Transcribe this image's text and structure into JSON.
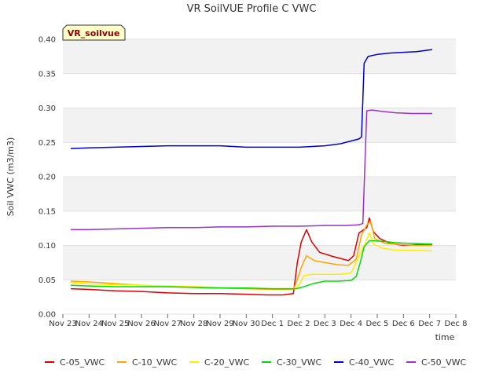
{
  "chart_data": {
    "type": "line",
    "title": "VR SoilVUE Profile C VWC",
    "xlabel": "time",
    "ylabel": "Soil VWC (m3/m3)",
    "badge": "VR_soilvue",
    "xlim": [
      0,
      15
    ],
    "ylim": [
      0,
      0.4
    ],
    "x_ticks": [
      {
        "v": 0,
        "label": "Nov 23"
      },
      {
        "v": 1,
        "label": "Nov 24"
      },
      {
        "v": 2,
        "label": "Nov 25"
      },
      {
        "v": 3,
        "label": "Nov 26"
      },
      {
        "v": 4,
        "label": "Nov 27"
      },
      {
        "v": 5,
        "label": "Nov 28"
      },
      {
        "v": 6,
        "label": "Nov 29"
      },
      {
        "v": 7,
        "label": "Nov 30"
      },
      {
        "v": 8,
        "label": "Dec 1"
      },
      {
        "v": 9,
        "label": "Dec 2"
      },
      {
        "v": 10,
        "label": "Dec 3"
      },
      {
        "v": 11,
        "label": "Dec 4"
      },
      {
        "v": 12,
        "label": "Dec 5"
      },
      {
        "v": 13,
        "label": "Dec 6"
      },
      {
        "v": 14,
        "label": "Dec 7"
      },
      {
        "v": 15,
        "label": "Dec 8"
      }
    ],
    "y_ticks": [
      {
        "v": 0.0,
        "label": "0.00"
      },
      {
        "v": 0.05,
        "label": "0.05"
      },
      {
        "v": 0.1,
        "label": "0.10"
      },
      {
        "v": 0.15,
        "label": "0.15"
      },
      {
        "v": 0.2,
        "label": "0.20"
      },
      {
        "v": 0.25,
        "label": "0.25"
      },
      {
        "v": 0.3,
        "label": "0.30"
      },
      {
        "v": 0.35,
        "label": "0.35"
      },
      {
        "v": 0.4,
        "label": "0.40"
      }
    ],
    "grid": true,
    "legend_position": "bottom",
    "series": [
      {
        "name": "C-05_VWC",
        "color": "#dd0000",
        "points": [
          [
            0.3,
            0.037
          ],
          [
            1,
            0.036
          ],
          [
            2,
            0.034
          ],
          [
            3,
            0.033
          ],
          [
            4,
            0.031
          ],
          [
            5,
            0.03
          ],
          [
            6,
            0.03
          ],
          [
            7,
            0.029
          ],
          [
            7.8,
            0.028
          ],
          [
            8.4,
            0.028
          ],
          [
            8.8,
            0.03
          ],
          [
            8.95,
            0.075
          ],
          [
            9.1,
            0.105
          ],
          [
            9.3,
            0.123
          ],
          [
            9.5,
            0.105
          ],
          [
            9.8,
            0.09
          ],
          [
            10.3,
            0.084
          ],
          [
            10.7,
            0.08
          ],
          [
            10.9,
            0.078
          ],
          [
            11.1,
            0.085
          ],
          [
            11.3,
            0.118
          ],
          [
            11.6,
            0.126
          ],
          [
            11.7,
            0.14
          ],
          [
            11.85,
            0.12
          ],
          [
            12.1,
            0.11
          ],
          [
            12.5,
            0.103
          ],
          [
            13.0,
            0.1
          ],
          [
            13.5,
            0.101
          ],
          [
            14.1,
            0.101
          ]
        ]
      },
      {
        "name": "C-10_VWC",
        "color": "#ffa500",
        "points": [
          [
            0.3,
            0.048
          ],
          [
            1,
            0.047
          ],
          [
            1.8,
            0.045
          ],
          [
            3,
            0.042
          ],
          [
            4,
            0.04
          ],
          [
            5,
            0.039
          ],
          [
            6,
            0.038
          ],
          [
            7,
            0.037
          ],
          [
            8.0,
            0.036
          ],
          [
            8.8,
            0.036
          ],
          [
            8.95,
            0.05
          ],
          [
            9.1,
            0.068
          ],
          [
            9.3,
            0.085
          ],
          [
            9.6,
            0.078
          ],
          [
            10.0,
            0.075
          ],
          [
            10.5,
            0.072
          ],
          [
            10.9,
            0.071
          ],
          [
            11.2,
            0.08
          ],
          [
            11.4,
            0.115
          ],
          [
            11.6,
            0.13
          ],
          [
            11.75,
            0.135
          ],
          [
            11.9,
            0.11
          ],
          [
            12.3,
            0.103
          ],
          [
            13.0,
            0.101
          ],
          [
            13.5,
            0.1
          ],
          [
            14.1,
            0.1
          ]
        ]
      },
      {
        "name": "C-20_VWC",
        "color": "#ffee00",
        "points": [
          [
            0.3,
            0.046
          ],
          [
            1,
            0.044
          ],
          [
            2,
            0.043
          ],
          [
            3,
            0.042
          ],
          [
            4,
            0.041
          ],
          [
            5,
            0.04
          ],
          [
            6,
            0.039
          ],
          [
            7,
            0.038
          ],
          [
            8.0,
            0.037
          ],
          [
            8.9,
            0.037
          ],
          [
            9.05,
            0.045
          ],
          [
            9.2,
            0.056
          ],
          [
            9.5,
            0.058
          ],
          [
            10.0,
            0.058
          ],
          [
            10.6,
            0.058
          ],
          [
            11.0,
            0.06
          ],
          [
            11.25,
            0.08
          ],
          [
            11.5,
            0.1
          ],
          [
            11.7,
            0.118
          ],
          [
            11.85,
            0.102
          ],
          [
            12.2,
            0.096
          ],
          [
            12.7,
            0.093
          ],
          [
            13.5,
            0.093
          ],
          [
            14.1,
            0.092
          ]
        ]
      },
      {
        "name": "C-30_VWC",
        "color": "#00dd00",
        "points": [
          [
            0.3,
            0.042
          ],
          [
            1,
            0.041
          ],
          [
            2,
            0.04
          ],
          [
            3,
            0.04
          ],
          [
            4,
            0.04
          ],
          [
            5,
            0.039
          ],
          [
            6,
            0.038
          ],
          [
            7,
            0.038
          ],
          [
            8.0,
            0.037
          ],
          [
            8.9,
            0.037
          ],
          [
            9.2,
            0.04
          ],
          [
            9.6,
            0.045
          ],
          [
            10.0,
            0.048
          ],
          [
            10.5,
            0.048
          ],
          [
            11.0,
            0.049
          ],
          [
            11.2,
            0.055
          ],
          [
            11.35,
            0.075
          ],
          [
            11.5,
            0.098
          ],
          [
            11.7,
            0.107
          ],
          [
            12.2,
            0.106
          ],
          [
            12.7,
            0.104
          ],
          [
            13.3,
            0.103
          ],
          [
            14.1,
            0.102
          ]
        ]
      },
      {
        "name": "C-40_VWC",
        "color": "#0000cc",
        "points": [
          [
            0.3,
            0.241
          ],
          [
            1,
            0.242
          ],
          [
            2,
            0.243
          ],
          [
            3,
            0.244
          ],
          [
            4,
            0.245
          ],
          [
            5,
            0.245
          ],
          [
            6,
            0.245
          ],
          [
            7,
            0.243
          ],
          [
            8.0,
            0.243
          ],
          [
            9.0,
            0.243
          ],
          [
            10.0,
            0.245
          ],
          [
            10.6,
            0.248
          ],
          [
            11.0,
            0.252
          ],
          [
            11.3,
            0.255
          ],
          [
            11.4,
            0.258
          ],
          [
            11.5,
            0.365
          ],
          [
            11.65,
            0.375
          ],
          [
            12.0,
            0.378
          ],
          [
            12.5,
            0.38
          ],
          [
            13.0,
            0.381
          ],
          [
            13.5,
            0.382
          ],
          [
            14.1,
            0.385
          ]
        ]
      },
      {
        "name": "C-50_VWC",
        "color": "#9933cc",
        "points": [
          [
            0.3,
            0.123
          ],
          [
            1,
            0.123
          ],
          [
            2,
            0.124
          ],
          [
            3,
            0.125
          ],
          [
            4,
            0.126
          ],
          [
            5,
            0.126
          ],
          [
            6,
            0.127
          ],
          [
            7,
            0.127
          ],
          [
            8.0,
            0.128
          ],
          [
            9.0,
            0.128
          ],
          [
            10.0,
            0.129
          ],
          [
            10.8,
            0.129
          ],
          [
            11.3,
            0.13
          ],
          [
            11.45,
            0.132
          ],
          [
            11.6,
            0.296
          ],
          [
            11.8,
            0.297
          ],
          [
            12.2,
            0.295
          ],
          [
            12.7,
            0.293
          ],
          [
            13.3,
            0.292
          ],
          [
            14.1,
            0.292
          ]
        ]
      }
    ]
  }
}
